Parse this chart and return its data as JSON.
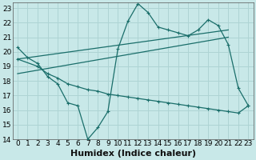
{
  "xlabel": "Humidex (Indice chaleur)",
  "bg_color": "#c8e8e8",
  "grid_color": "#aed4d4",
  "line_color": "#1a6e6a",
  "xlim": [
    -0.5,
    23.5
  ],
  "ylim": [
    14,
    23.4
  ],
  "xticks": [
    0,
    1,
    2,
    3,
    4,
    5,
    6,
    7,
    8,
    9,
    10,
    11,
    12,
    13,
    14,
    15,
    16,
    17,
    18,
    19,
    20,
    21,
    22,
    23
  ],
  "yticks": [
    14,
    15,
    16,
    17,
    18,
    19,
    20,
    21,
    22,
    23
  ],
  "series1_x": [
    0,
    1,
    2,
    3,
    4,
    5,
    6,
    7,
    8,
    9,
    10,
    11,
    12,
    13,
    14,
    15,
    16,
    17,
    18,
    19,
    20,
    21,
    22,
    23
  ],
  "series1_y": [
    20.3,
    19.6,
    19.2,
    18.3,
    17.8,
    16.5,
    16.3,
    14.0,
    14.8,
    15.9,
    20.2,
    22.1,
    23.3,
    22.7,
    21.7,
    21.5,
    21.3,
    21.1,
    21.5,
    22.2,
    21.8,
    20.5,
    17.5,
    16.3
  ],
  "series2_x": [
    0,
    2,
    3,
    4,
    5,
    6,
    7,
    8,
    9,
    10,
    11,
    12,
    13,
    14,
    15,
    16,
    17,
    18,
    19,
    20,
    21,
    22,
    23
  ],
  "series2_y": [
    19.5,
    19.0,
    18.5,
    18.2,
    17.8,
    17.6,
    17.4,
    17.3,
    17.1,
    17.0,
    16.9,
    16.8,
    16.7,
    16.6,
    16.5,
    16.4,
    16.3,
    16.2,
    16.1,
    16.0,
    15.9,
    15.8,
    16.3
  ],
  "trend1_x": [
    0,
    21
  ],
  "trend1_y": [
    19.5,
    21.5
  ],
  "trend2_x": [
    0,
    21
  ],
  "trend2_y": [
    18.5,
    21.0
  ],
  "xlabel_fontsize": 8,
  "tick_fontsize": 6.5
}
